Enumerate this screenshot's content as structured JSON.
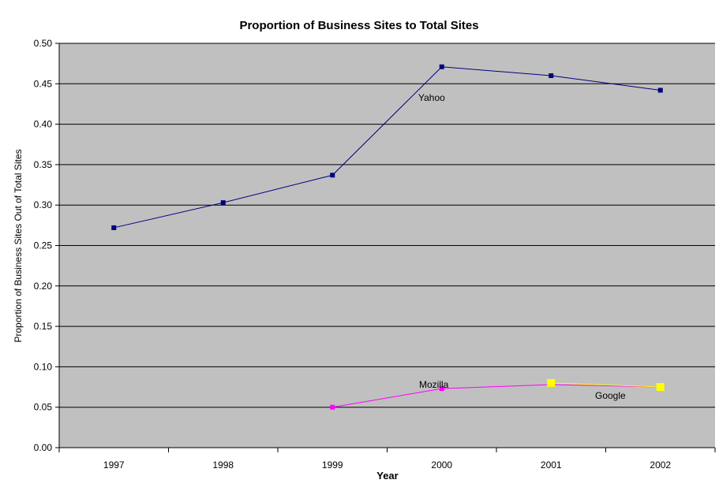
{
  "chart_data": {
    "type": "line",
    "title": "Proportion of Business Sites to Total Sites",
    "xlabel": "Year",
    "ylabel": "Proportion of Business Sites Out of Total Sites",
    "categories": [
      "1997",
      "1998",
      "1999",
      "2000",
      "2001",
      "2002"
    ],
    "ylim": [
      0,
      0.5
    ],
    "yticks": [
      "0.00",
      "0.05",
      "0.10",
      "0.15",
      "0.20",
      "0.25",
      "0.30",
      "0.35",
      "0.40",
      "0.45",
      "0.50"
    ],
    "grid": true,
    "legend": "none (inline labels)",
    "plot_background": "#C0C0C0",
    "series": [
      {
        "name": "Yahoo",
        "color": "#000080",
        "values": [
          0.272,
          0.303,
          0.337,
          0.471,
          0.46,
          0.442
        ]
      },
      {
        "name": "Mozilla",
        "color": "#FF00FF",
        "values": [
          null,
          null,
          0.05,
          0.073,
          0.078,
          0.075
        ]
      },
      {
        "name": "Google",
        "color": "#FFFF00",
        "values": [
          null,
          null,
          null,
          null,
          0.08,
          0.075
        ]
      }
    ]
  }
}
